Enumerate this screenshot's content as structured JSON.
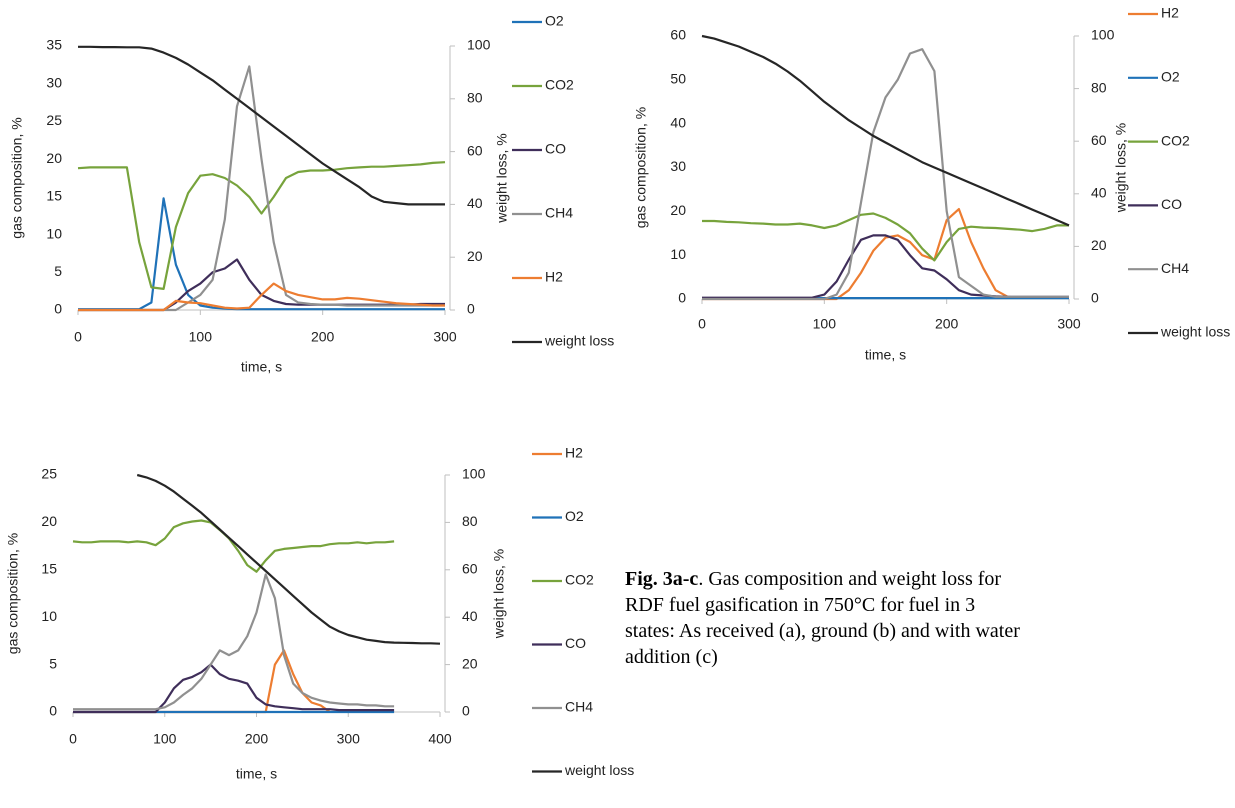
{
  "chart_data": [
    {
      "type": "line",
      "y_label": "gas composition, %",
      "y2_label": "weight loss, %",
      "x_label": "time, s",
      "xlim": [
        0,
        300
      ],
      "xticks": [
        0,
        100,
        200,
        300
      ],
      "ylim": [
        0,
        35
      ],
      "yticks": [
        0,
        5,
        10,
        15,
        20,
        25,
        30,
        35
      ],
      "y2lim": [
        0,
        100
      ],
      "y2ticks": [
        0,
        20,
        40,
        60,
        80,
        100
      ],
      "x": [
        0,
        10,
        20,
        30,
        40,
        50,
        60,
        70,
        80,
        90,
        100,
        110,
        120,
        130,
        140,
        150,
        160,
        170,
        180,
        190,
        200,
        210,
        220,
        230,
        240,
        250,
        260,
        270,
        280,
        290,
        300
      ],
      "series": [
        {
          "name": "O2",
          "color": "#1f72b8",
          "values": [
            0.1,
            0.1,
            0.1,
            0.1,
            0.1,
            0.1,
            1,
            14.8,
            6,
            2,
            0.6,
            0.3,
            0.2,
            0.1,
            0.1,
            0.1,
            0.1,
            0.1,
            0.1,
            0.1,
            0.1,
            0.1,
            0.1,
            0.1,
            0.1,
            0.1,
            0.1,
            0.1,
            0.1,
            0.1,
            0.1
          ]
        },
        {
          "name": "CO2",
          "color": "#77a33c",
          "values": [
            18.8,
            18.9,
            18.9,
            18.9,
            18.9,
            9,
            3,
            2.8,
            11,
            15.5,
            17.8,
            18,
            17.5,
            16.5,
            15,
            12.8,
            15,
            17.5,
            18.3,
            18.5,
            18.5,
            18.6,
            18.8,
            18.9,
            19,
            19,
            19.1,
            19.2,
            19.3,
            19.5,
            19.6
          ]
        },
        {
          "name": "CO",
          "color": "#3f2e5a",
          "values": [
            0,
            0,
            0,
            0,
            0,
            0,
            0,
            0,
            1,
            2.5,
            3.5,
            5,
            5.5,
            6.7,
            4,
            2,
            1.2,
            0.8,
            0.7,
            0.7,
            0.7,
            0.7,
            0.7,
            0.7,
            0.7,
            0.7,
            0.7,
            0.7,
            0.8,
            0.8,
            0.8
          ]
        },
        {
          "name": "CH4",
          "color": "#909090",
          "values": [
            0,
            0,
            0,
            0,
            0,
            0,
            0,
            0,
            0,
            1,
            2,
            4,
            12,
            27,
            32.3,
            20,
            9,
            2,
            1,
            0.8,
            0.7,
            0.7,
            0.6,
            0.6,
            0.6,
            0.6,
            0.6,
            0.6,
            0.6,
            0.6,
            0.6
          ]
        },
        {
          "name": "H2",
          "color": "#ed7d31",
          "values": [
            0,
            0,
            0,
            0,
            0,
            0,
            0,
            0,
            1.2,
            1,
            0.9,
            0.6,
            0.3,
            0.2,
            0.3,
            2,
            3.5,
            2.5,
            2,
            1.7,
            1.4,
            1.4,
            1.6,
            1.5,
            1.3,
            1.1,
            0.9,
            0.8,
            0.7,
            0.6,
            0.6
          ]
        },
        {
          "name": "weight loss",
          "color": "#262626",
          "axis": "y2",
          "values": [
            99.7,
            99.7,
            99.6,
            99.6,
            99.5,
            99.5,
            99,
            97.5,
            95.5,
            93,
            90,
            87,
            83.5,
            80,
            76.5,
            73,
            69.5,
            66,
            62.5,
            59,
            55.5,
            52.5,
            49.5,
            46.5,
            43,
            41,
            40.5,
            40,
            40,
            40,
            40
          ]
        }
      ]
    },
    {
      "type": "line",
      "y_label": "gas composition, %",
      "y2_label": "weight loss, %",
      "x_label": "time, s",
      "xlim": [
        0,
        300
      ],
      "xticks": [
        0,
        100,
        200,
        300
      ],
      "ylim": [
        0,
        60
      ],
      "yticks": [
        0,
        10,
        20,
        30,
        40,
        50,
        60
      ],
      "y2lim": [
        0,
        100
      ],
      "y2ticks": [
        0,
        20,
        40,
        60,
        80,
        100
      ],
      "x": [
        0,
        10,
        20,
        30,
        40,
        50,
        60,
        70,
        80,
        90,
        100,
        110,
        120,
        130,
        140,
        150,
        160,
        170,
        180,
        190,
        200,
        210,
        220,
        230,
        240,
        250,
        260,
        270,
        280,
        290,
        300
      ],
      "series": [
        {
          "name": "H2",
          "color": "#ed7d31",
          "values": [
            0,
            0,
            0,
            0,
            0,
            0,
            0,
            0,
            0,
            0,
            0,
            0,
            2,
            6,
            11,
            14,
            14.5,
            13,
            10,
            9,
            18,
            20.5,
            13,
            7,
            2,
            0.5,
            0.3,
            0.3,
            0.3,
            0.3,
            0.3
          ]
        },
        {
          "name": "O2",
          "color": "#1f72b8",
          "values": [
            0.2,
            0.2,
            0.2,
            0.2,
            0.2,
            0.2,
            0.2,
            0.2,
            0.2,
            0.2,
            0.2,
            0.2,
            0.2,
            0.2,
            0.2,
            0.2,
            0.2,
            0.2,
            0.2,
            0.2,
            0.2,
            0.2,
            0.2,
            0.2,
            0.2,
            0.2,
            0.2,
            0.2,
            0.2,
            0.2,
            0.2
          ]
        },
        {
          "name": "CO2",
          "color": "#77a33c",
          "values": [
            17.8,
            17.8,
            17.6,
            17.5,
            17.3,
            17.2,
            17,
            17,
            17.2,
            16.8,
            16.2,
            16.8,
            18,
            19.2,
            19.5,
            18.5,
            17,
            15,
            11.5,
            8.8,
            13,
            16,
            16.5,
            16.3,
            16.2,
            16,
            15.8,
            15.5,
            16,
            16.8,
            16.8
          ]
        },
        {
          "name": "CO",
          "color": "#3f2e5a",
          "values": [
            0.3,
            0.3,
            0.3,
            0.3,
            0.3,
            0.3,
            0.3,
            0.3,
            0.3,
            0.3,
            1,
            4,
            9,
            13.5,
            14.5,
            14.5,
            13.5,
            10,
            7,
            6.5,
            4.5,
            2,
            1,
            0.8,
            0.6,
            0.5,
            0.5,
            0.5,
            0.5,
            0.5,
            0.5
          ]
        },
        {
          "name": "CH4",
          "color": "#909090",
          "values": [
            0,
            0,
            0,
            0,
            0,
            0,
            0,
            0,
            0,
            0,
            0,
            1,
            6,
            22,
            38,
            46,
            50,
            56,
            57,
            52,
            20,
            5,
            3,
            1,
            0.5,
            0.5,
            0.5,
            0.5,
            0.5,
            0.5,
            0.5
          ]
        },
        {
          "name": "weight loss",
          "color": "#262626",
          "axis": "y2",
          "values": [
            100,
            99,
            97.5,
            96,
            94,
            92,
            89.5,
            86.5,
            83,
            79,
            75,
            71.5,
            68,
            65,
            62,
            59.5,
            57,
            54.5,
            52,
            50,
            48,
            46,
            44,
            42,
            40,
            38,
            36,
            34,
            32,
            30,
            28
          ]
        }
      ]
    },
    {
      "type": "line",
      "y_label": "gas composition, %",
      "y2_label": "weight loss, %",
      "x_label": "time, s",
      "xlim": [
        0,
        400
      ],
      "xticks": [
        0,
        100,
        200,
        300,
        400
      ],
      "ylim": [
        0,
        25
      ],
      "yticks": [
        0,
        5,
        10,
        15,
        20,
        25
      ],
      "y2lim": [
        0,
        100
      ],
      "y2ticks": [
        0,
        20,
        40,
        60,
        80,
        100
      ],
      "x": [
        0,
        10,
        20,
        30,
        40,
        50,
        60,
        70,
        80,
        90,
        100,
        110,
        120,
        130,
        140,
        150,
        160,
        170,
        180,
        190,
        200,
        210,
        220,
        230,
        240,
        250,
        260,
        270,
        280,
        290,
        300,
        310,
        320,
        330,
        340,
        350,
        360,
        370,
        380,
        390,
        400
      ],
      "series": [
        {
          "name": "H2",
          "color": "#ed7d31",
          "values": [
            0,
            0,
            0,
            0,
            0,
            0,
            0,
            0,
            0,
            0,
            0,
            0,
            0,
            0,
            0,
            0,
            0,
            0,
            0,
            0,
            0,
            0,
            5,
            6.5,
            4,
            2,
            1,
            0.7,
            0,
            null,
            null,
            null,
            null,
            null,
            null,
            null,
            null,
            null,
            null,
            null,
            null
          ]
        },
        {
          "name": "O2",
          "color": "#1f72b8",
          "values": [
            0,
            0,
            0,
            0,
            0,
            0,
            0,
            0,
            0,
            0,
            0,
            0,
            0,
            0,
            0,
            0,
            0,
            0,
            0,
            0,
            0,
            0,
            0,
            0,
            0,
            0,
            0,
            0,
            0,
            0,
            0,
            0,
            0,
            0,
            0,
            0,
            null,
            null,
            null,
            null,
            null
          ]
        },
        {
          "name": "CO2",
          "color": "#77a33c",
          "values": [
            18,
            17.9,
            17.9,
            18,
            18,
            18,
            17.9,
            18,
            17.9,
            17.6,
            18.3,
            19.5,
            19.9,
            20.1,
            20.2,
            20,
            19.2,
            18.3,
            17,
            15.5,
            14.8,
            16,
            17,
            17.2,
            17.3,
            17.4,
            17.5,
            17.5,
            17.7,
            17.8,
            17.8,
            17.9,
            17.8,
            17.9,
            17.9,
            18,
            null,
            null,
            null,
            null,
            null
          ]
        },
        {
          "name": "CO",
          "color": "#3f2e5a",
          "values": [
            0,
            0,
            0,
            0,
            0,
            0,
            0,
            0,
            0,
            0,
            1,
            2.5,
            3.4,
            3.7,
            4.2,
            5,
            4,
            3.5,
            3.3,
            3,
            1.5,
            0.8,
            0.6,
            0.5,
            0.4,
            0.3,
            0.3,
            0.3,
            0.3,
            0.2,
            0.2,
            0.2,
            0.2,
            0.2,
            0.2,
            0.2,
            null,
            null,
            null,
            null,
            null
          ]
        },
        {
          "name": "CH4",
          "color": "#909090",
          "values": [
            0.3,
            0.3,
            0.3,
            0.3,
            0.3,
            0.3,
            0.3,
            0.3,
            0.3,
            0.3,
            0.5,
            1,
            1.8,
            2.5,
            3.5,
            5,
            6.5,
            6,
            6.5,
            8,
            10.5,
            14.5,
            12,
            6,
            3,
            2,
            1.5,
            1.2,
            1,
            0.9,
            0.8,
            0.8,
            0.7,
            0.7,
            0.6,
            0.6,
            null,
            null,
            null,
            null,
            null
          ]
        },
        {
          "name": "weight loss",
          "color": "#262626",
          "axis": "y2",
          "values": [
            null,
            null,
            null,
            null,
            null,
            null,
            null,
            100,
            99,
            97.5,
            95.5,
            93,
            90,
            87,
            84,
            80.5,
            77,
            73.5,
            70,
            66.5,
            63,
            59.5,
            56,
            52.5,
            49,
            45.5,
            42,
            39,
            36,
            34,
            32.5,
            31.5,
            30.5,
            30,
            29.5,
            29.3,
            29.2,
            29.1,
            29,
            29,
            28.8
          ]
        }
      ]
    }
  ],
  "caption": {
    "label": "Fig. 3a-c",
    "text": ". Gas composition and weight loss for RDF fuel gasification in 750°C for fuel in 3 states: As received (a), ground (b) and with water addition (c)"
  }
}
